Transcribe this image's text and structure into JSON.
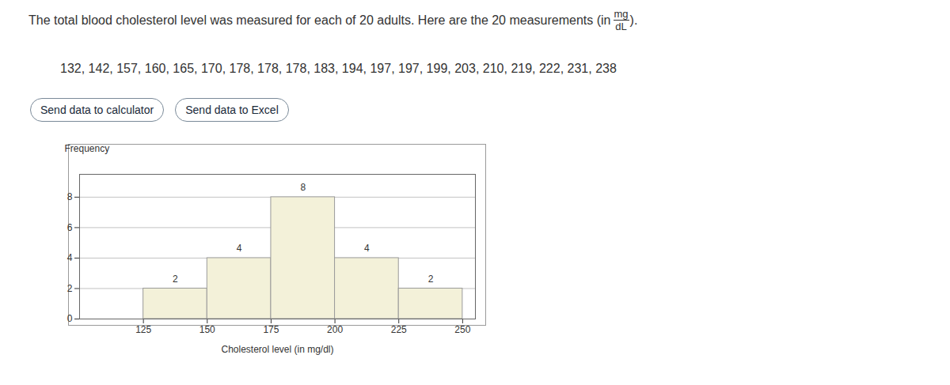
{
  "chart_data": {
    "type": "histogram",
    "bins": [
      125,
      150,
      175,
      200,
      225,
      250
    ],
    "values": [
      2,
      4,
      8,
      4,
      2
    ],
    "color": "#f3f1d9",
    "x_label": "Cholesterol level (in mg/dl)",
    "y_label": "Frequency",
    "xlim": [
      100,
      255
    ],
    "ylim": [
      0,
      9.5
    ],
    "xticks": [
      125,
      150,
      175,
      200,
      225,
      250
    ],
    "yticks": [
      0,
      2,
      4,
      6,
      8
    ],
    "grid": true,
    "data_labels": true
  },
  "page": {
    "intro": "The total blood cholesterol level was measured for each of 20 adults. Here are the 20 measurements (in",
    "unit_numerator": "mg",
    "unit_denominator": "dL",
    "intro_end": ").",
    "measurements": "132, 142, 157, 160, 165, 170, 178, 178, 178, 183, 194, 197, 197, 199, 203, 210, 219, 222, 231, 238",
    "buttons": [
      "Send data to calculator",
      "Send data to Excel"
    ]
  }
}
